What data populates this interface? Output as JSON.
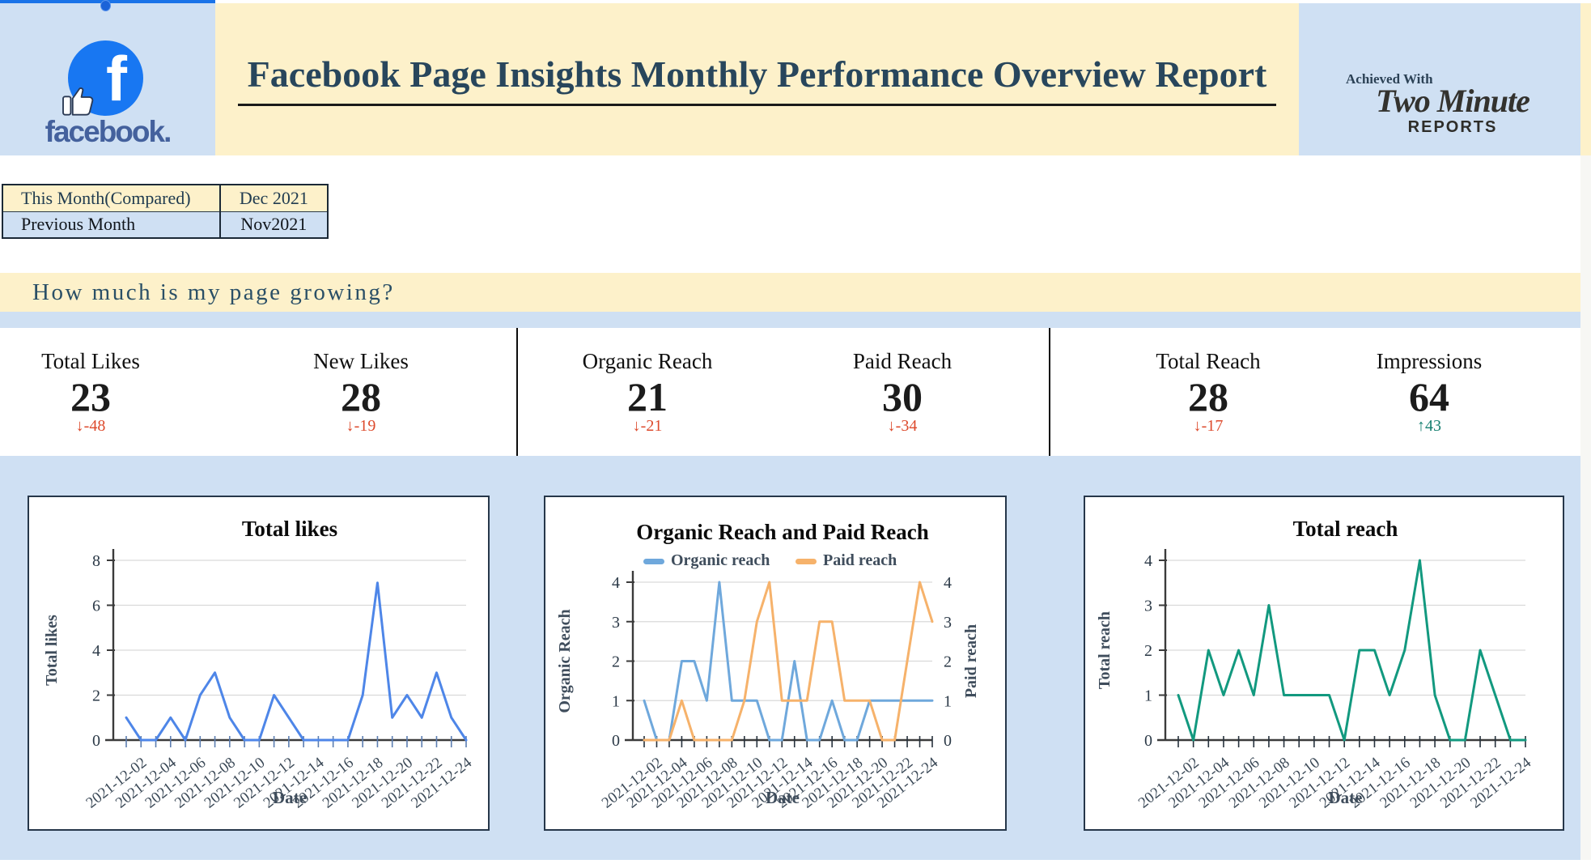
{
  "header": {
    "title": "Facebook Page Insights Monthly Performance Overview Report",
    "facebook_wordmark": "facebook.",
    "facebook_f": "f",
    "achieved_with": "Achieved With",
    "brand_script": "Two Minute",
    "brand_block": "REPORTS"
  },
  "comparison_table": {
    "rows": [
      {
        "label": "This Month(Compared)",
        "value": "Dec 2021"
      },
      {
        "label": "Previous Month",
        "value": "Nov2021"
      }
    ]
  },
  "section_question": "How much is my page growing?",
  "kpis": [
    {
      "label": "Total Likes",
      "value": "23",
      "delta": "↓-48",
      "dir": "down"
    },
    {
      "label": "New Likes",
      "value": "28",
      "delta": "↓-19",
      "dir": "down"
    },
    {
      "label": "Organic Reach",
      "value": "21",
      "delta": "↓-21",
      "dir": "down"
    },
    {
      "label": "Paid Reach",
      "value": "30",
      "delta": "↓-34",
      "dir": "down"
    },
    {
      "label": "Total Reach",
      "value": "28",
      "delta": "↓-17",
      "dir": "down"
    },
    {
      "label": "Impressions",
      "value": "64",
      "delta": "↑43",
      "dir": "up"
    }
  ],
  "colors": {
    "band_yellow": "#fdf1ca",
    "band_blue": "#cfe0f3",
    "facebook_blue": "#1877f2",
    "title_navy": "#28465c",
    "delta_down": "#dd4a2c",
    "delta_up": "#157f70",
    "chart1_line": "#4e86e8",
    "organic_line": "#6fa8dc",
    "paid_line": "#f6b26b",
    "total_reach_line": "#12997f"
  },
  "chart_data": [
    {
      "type": "line",
      "title": "Total likes",
      "xlabel": "Date",
      "ylabel": "Total likes",
      "ylim": [
        0,
        8
      ],
      "yticks": [
        0,
        2,
        4,
        6,
        8
      ],
      "grid": true,
      "x": [
        "2021-12-01",
        "2021-12-02",
        "2021-12-03",
        "2021-12-04",
        "2021-12-05",
        "2021-12-06",
        "2021-12-07",
        "2021-12-08",
        "2021-12-09",
        "2021-12-10",
        "2021-12-11",
        "2021-12-12",
        "2021-12-13",
        "2021-12-14",
        "2021-12-15",
        "2021-12-16",
        "2021-12-17",
        "2021-12-18",
        "2021-12-19",
        "2021-12-20",
        "2021-12-21",
        "2021-12-22",
        "2021-12-23",
        "2021-12-24"
      ],
      "series": [
        {
          "name": "Total likes",
          "color": "#4e86e8",
          "values": [
            1,
            0,
            0,
            1,
            0,
            2,
            3,
            1,
            0,
            0,
            2,
            1,
            0,
            0,
            0,
            0,
            2,
            7,
            1,
            2,
            1,
            3,
            1,
            0
          ]
        }
      ]
    },
    {
      "type": "line",
      "title": "Organic Reach and Paid Reach",
      "xlabel": "Date",
      "ylabel_left": "Organic Reach",
      "ylabel_right": "Paid reach",
      "legend": [
        "Organic reach",
        "Paid reach"
      ],
      "legend_position": "top",
      "ylim": [
        0,
        4
      ],
      "yticks": [
        0,
        1,
        2,
        3,
        4
      ],
      "grid": true,
      "right_axis": true,
      "x": [
        "2021-12-01",
        "2021-12-02",
        "2021-12-03",
        "2021-12-04",
        "2021-12-05",
        "2021-12-06",
        "2021-12-07",
        "2021-12-08",
        "2021-12-09",
        "2021-12-10",
        "2021-12-11",
        "2021-12-12",
        "2021-12-13",
        "2021-12-14",
        "2021-12-15",
        "2021-12-16",
        "2021-12-17",
        "2021-12-18",
        "2021-12-19",
        "2021-12-20",
        "2021-12-21",
        "2021-12-22",
        "2021-12-23",
        "2021-12-24"
      ],
      "series": [
        {
          "name": "Organic reach",
          "color": "#6fa8dc",
          "values": [
            1,
            0,
            0,
            2,
            2,
            1,
            4,
            1,
            1,
            1,
            0,
            0,
            2,
            0,
            0,
            1,
            0,
            0,
            1,
            1,
            1,
            1,
            1,
            1
          ]
        },
        {
          "name": "Paid reach",
          "color": "#f6b26b",
          "values": [
            0,
            0,
            0,
            1,
            0,
            0,
            0,
            0,
            1,
            3,
            4,
            1,
            1,
            1,
            3,
            3,
            1,
            1,
            1,
            0,
            0,
            2,
            4,
            3
          ]
        }
      ]
    },
    {
      "type": "line",
      "title": "Total reach",
      "xlabel": "Date",
      "ylabel": "Total reach",
      "ylim": [
        0,
        4
      ],
      "yticks": [
        0,
        1,
        2,
        3,
        4
      ],
      "grid": true,
      "x": [
        "2021-12-01",
        "2021-12-02",
        "2021-12-03",
        "2021-12-04",
        "2021-12-05",
        "2021-12-06",
        "2021-12-07",
        "2021-12-08",
        "2021-12-09",
        "2021-12-10",
        "2021-12-11",
        "2021-12-12",
        "2021-12-13",
        "2021-12-14",
        "2021-12-15",
        "2021-12-16",
        "2021-12-17",
        "2021-12-18",
        "2021-12-19",
        "2021-12-20",
        "2021-12-21",
        "2021-12-22",
        "2021-12-23",
        "2021-12-24"
      ],
      "series": [
        {
          "name": "Total reach",
          "color": "#12997f",
          "values": [
            1,
            0,
            2,
            1,
            2,
            1,
            3,
            1,
            1,
            1,
            1,
            0,
            2,
            2,
            1,
            2,
            4,
            1,
            0,
            0,
            2,
            1,
            0,
            0
          ]
        }
      ]
    }
  ]
}
